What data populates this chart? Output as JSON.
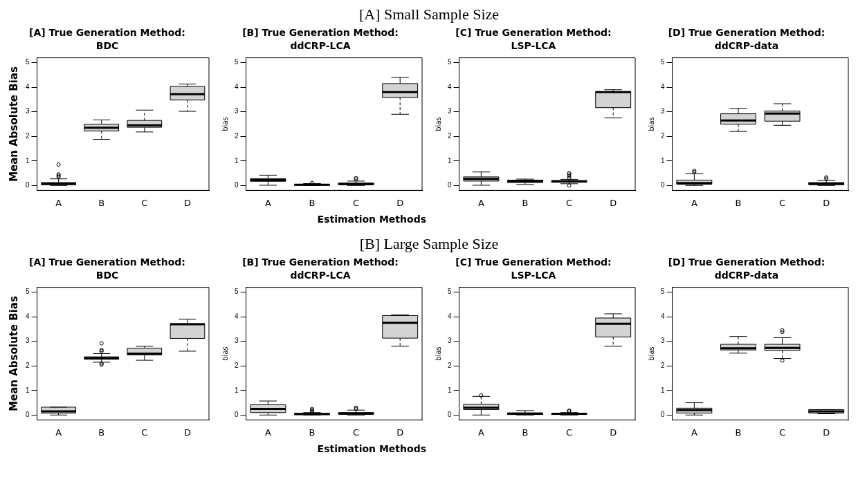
{
  "chart_data": [
    {
      "type": "box",
      "title": "[A] True Generation Method:",
      "subtitle": "BDC",
      "annotations": [
        "[A] Small Sample Size"
      ],
      "ylabel": "Mean Absolute Bias",
      "categories": [
        "A",
        "B",
        "C",
        "D"
      ],
      "color": "#d3d3d3",
      "ylim": [
        -0.2,
        5.2
      ],
      "yticks": [
        0,
        1,
        2,
        3,
        4,
        5
      ],
      "boxes": [
        {
          "low": 0,
          "q1": 0.03,
          "median": 0.07,
          "q3": 0.12,
          "high": 0.27,
          "outliers": [
            0.35,
            0.4,
            0.45,
            0.85
          ]
        },
        {
          "low": 1.88,
          "q1": 2.22,
          "median": 2.35,
          "q3": 2.5,
          "high": 2.67
        },
        {
          "low": 2.18,
          "q1": 2.37,
          "median": 2.45,
          "q3": 2.65,
          "high": 3.07
        },
        {
          "low": 3.02,
          "q1": 3.48,
          "median": 3.72,
          "q3": 4.03,
          "high": 4.13
        }
      ]
    },
    {
      "type": "box",
      "title": "[B] True Generation Method:",
      "subtitle": "ddCRP-LCA",
      "xlabel": "Estimation Methods",
      "ylabel": "bias",
      "categories": [
        "A",
        "B",
        "C",
        "D"
      ],
      "color": "#d3d3d3",
      "ylim": [
        -0.2,
        5.2
      ],
      "yticks": [
        0,
        1,
        2,
        3,
        4,
        5
      ],
      "boxes": [
        {
          "low": 0.01,
          "q1": 0.17,
          "median": 0.22,
          "q3": 0.28,
          "high": 0.42
        },
        {
          "low": 0,
          "q1": 0.01,
          "median": 0.03,
          "q3": 0.05,
          "high": 0.08,
          "outliers": [
            0.1
          ]
        },
        {
          "low": 0,
          "q1": 0.03,
          "median": 0.06,
          "q3": 0.1,
          "high": 0.18,
          "outliers": [
            0.25,
            0.3
          ]
        },
        {
          "low": 2.9,
          "q1": 3.58,
          "median": 3.8,
          "q3": 4.15,
          "high": 4.4
        }
      ]
    },
    {
      "type": "box",
      "title": "[C] True Generation Method:",
      "subtitle": "LSP-LCA",
      "ylabel": "bias",
      "categories": [
        "A",
        "B",
        "C",
        "D"
      ],
      "color": "#d3d3d3",
      "ylim": [
        -0.2,
        5.2
      ],
      "yticks": [
        0,
        1,
        2,
        3,
        4,
        5
      ],
      "boxes": [
        {
          "low": 0.01,
          "q1": 0.18,
          "median": 0.27,
          "q3": 0.35,
          "high": 0.55
        },
        {
          "low": 0.04,
          "q1": 0.12,
          "median": 0.17,
          "q3": 0.22,
          "high": 0.26
        },
        {
          "low": 0.07,
          "q1": 0.13,
          "median": 0.17,
          "q3": 0.2,
          "high": 0.25,
          "outliers": [
            0,
            0.3,
            0.38,
            0.45,
            0.5
          ]
        },
        {
          "low": 2.75,
          "q1": 3.17,
          "median": 3.8,
          "q3": 3.82,
          "high": 3.9
        }
      ]
    },
    {
      "type": "box",
      "title": "[D] True Generation Method:",
      "subtitle": "ddCRP-data",
      "ylabel": "bias",
      "categories": [
        "A",
        "B",
        "C",
        "D"
      ],
      "color": "#d3d3d3",
      "ylim": [
        -0.2,
        5.2
      ],
      "yticks": [
        0,
        1,
        2,
        3,
        4,
        5
      ],
      "boxes": [
        {
          "low": 0,
          "q1": 0.05,
          "median": 0.1,
          "q3": 0.22,
          "high": 0.48,
          "outliers": [
            0.55,
            0.6
          ]
        },
        {
          "low": 2.2,
          "q1": 2.5,
          "median": 2.65,
          "q3": 2.92,
          "high": 3.14
        },
        {
          "low": 2.45,
          "q1": 2.62,
          "median": 2.93,
          "q3": 3.03,
          "high": 3.33
        },
        {
          "low": 0,
          "q1": 0.03,
          "median": 0.07,
          "q3": 0.12,
          "high": 0.2,
          "outliers": [
            0.28,
            0.33
          ]
        }
      ]
    },
    {
      "type": "box",
      "title": "[A] True Generation Method:",
      "subtitle": "BDC",
      "annotations": [
        "[B] Large Sample Size"
      ],
      "ylabel": "Mean Absolute Bias",
      "categories": [
        "A",
        "B",
        "C",
        "D"
      ],
      "color": "#d3d3d3",
      "ylim": [
        -0.2,
        5.2
      ],
      "yticks": [
        0,
        1,
        2,
        3,
        4,
        5
      ],
      "boxes": [
        {
          "low": 0,
          "q1": 0.08,
          "median": 0.15,
          "q3": 0.32,
          "high": 0.32
        },
        {
          "low": 2.15,
          "q1": 2.27,
          "median": 2.32,
          "q3": 2.37,
          "high": 2.5,
          "outliers": [
            2.05,
            2.1,
            2.6,
            2.65,
            2.92
          ]
        },
        {
          "low": 2.23,
          "q1": 2.45,
          "median": 2.5,
          "q3": 2.72,
          "high": 2.8
        },
        {
          "low": 2.6,
          "q1": 3.12,
          "median": 3.7,
          "q3": 3.72,
          "high": 3.9
        }
      ]
    },
    {
      "type": "box",
      "title": "[B] True Generation Method:",
      "subtitle": "ddCRP-LCA",
      "xlabel": "Estimation Methods",
      "ylabel": "bias",
      "categories": [
        "A",
        "B",
        "C",
        "D"
      ],
      "color": "#d3d3d3",
      "ylim": [
        -0.2,
        5.2
      ],
      "yticks": [
        0,
        1,
        2,
        3,
        4,
        5
      ],
      "boxes": [
        {
          "low": 0,
          "q1": 0.1,
          "median": 0.25,
          "q3": 0.42,
          "high": 0.57
        },
        {
          "low": 0,
          "q1": 0.02,
          "median": 0.04,
          "q3": 0.07,
          "high": 0.1,
          "outliers": [
            0.15,
            0.2,
            0.25
          ]
        },
        {
          "low": 0,
          "q1": 0.03,
          "median": 0.06,
          "q3": 0.1,
          "high": 0.2,
          "outliers": [
            0.25,
            0.3
          ]
        },
        {
          "low": 2.8,
          "q1": 3.13,
          "median": 3.75,
          "q3": 4.05,
          "high": 4.08
        }
      ]
    },
    {
      "type": "box",
      "title": "[C] True Generation Method:",
      "subtitle": "LSP-LCA",
      "ylabel": "bias",
      "categories": [
        "A",
        "B",
        "C",
        "D"
      ],
      "color": "#d3d3d3",
      "ylim": [
        -0.2,
        5.2
      ],
      "yticks": [
        0,
        1,
        2,
        3,
        4,
        5
      ],
      "boxes": [
        {
          "low": 0,
          "q1": 0.22,
          "median": 0.3,
          "q3": 0.44,
          "high": 0.76,
          "outliers": [
            0.8
          ]
        },
        {
          "low": 0,
          "q1": 0.02,
          "median": 0.05,
          "q3": 0.09,
          "high": 0.18
        },
        {
          "low": 0,
          "q1": 0.02,
          "median": 0.05,
          "q3": 0.07,
          "high": 0.1,
          "outliers": [
            0.15,
            0.18
          ]
        },
        {
          "low": 2.8,
          "q1": 3.18,
          "median": 3.72,
          "q3": 3.95,
          "high": 4.12
        }
      ]
    },
    {
      "type": "box",
      "title": "[D] True Generation Method:",
      "subtitle": "ddCRP-data",
      "ylabel": "bias",
      "categories": [
        "A",
        "B",
        "C",
        "D"
      ],
      "color": "#d3d3d3",
      "ylim": [
        -0.2,
        5.2
      ],
      "yticks": [
        0,
        1,
        2,
        3,
        4,
        5
      ],
      "boxes": [
        {
          "low": 0,
          "q1": 0.08,
          "median": 0.2,
          "q3": 0.28,
          "high": 0.5
        },
        {
          "low": 2.52,
          "q1": 2.65,
          "median": 2.72,
          "q3": 2.88,
          "high": 3.2
        },
        {
          "low": 2.3,
          "q1": 2.63,
          "median": 2.73,
          "q3": 2.88,
          "high": 3.15,
          "outliers": [
            2.22,
            3.38,
            3.45
          ]
        },
        {
          "low": 0.05,
          "q1": 0.08,
          "median": 0.15,
          "q3": 0.22,
          "high": 0.22
        }
      ]
    }
  ]
}
